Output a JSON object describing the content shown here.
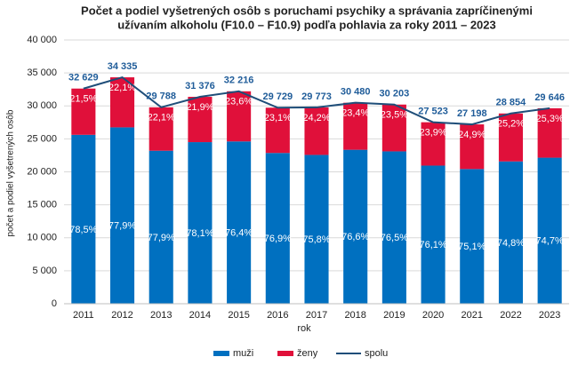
{
  "chart_data": {
    "type": "bar",
    "stacked": true,
    "title": [
      "Počet a podiel vyšetrených osôb s poruchami psychiky a správania zapríčinenými",
      "užívaním alkoholu (F10.0 – F10.9) podľa pohlavia za roky 2011 – 2023"
    ],
    "x_label": "rok",
    "y_label": "počet a podiel vyšetrených osôb",
    "categories": [
      "2011",
      "2012",
      "2013",
      "2014",
      "2015",
      "2016",
      "2017",
      "2018",
      "2019",
      "2020",
      "2021",
      "2022",
      "2023"
    ],
    "series": [
      {
        "name": "muži",
        "color": "#0070c0",
        "type": "bar",
        "values": [
          25614,
          26747,
          23205,
          24505,
          24613,
          22862,
          22568,
          23348,
          23105,
          20945,
          20426,
          21583,
          22146
        ],
        "value_labels": [
          "78,5%",
          "77,9%",
          "77,9%",
          "78,1%",
          "76,4%",
          "76,9%",
          "75,8%",
          "76,6%",
          "76,5%",
          "76,1%",
          "75,1%",
          "74,8%",
          "74,7%"
        ]
      },
      {
        "name": "ženy",
        "color": "#e0103a",
        "type": "bar",
        "values": [
          7015,
          7588,
          6583,
          6871,
          7603,
          6867,
          7205,
          7132,
          7098,
          6578,
          6772,
          7271,
          7500
        ],
        "value_labels": [
          "21,5%",
          "22,1%",
          "22,1%",
          "21,9%",
          "23,6%",
          "23,1%",
          "24,2%",
          "23,4%",
          "23,5%",
          "23,9%",
          "24,9%",
          "25,2%",
          "25,3%"
        ]
      },
      {
        "name": "spolu",
        "color": "#1f4e79",
        "type": "line",
        "values": [
          32629,
          34335,
          29788,
          31376,
          32216,
          29729,
          29773,
          30480,
          30203,
          27523,
          27198,
          28854,
          29646
        ],
        "value_labels": [
          "32 629",
          "34 335",
          "29 788",
          "31 376",
          "32 216",
          "29 729",
          "29 773",
          "30 480",
          "30 203",
          "27 523",
          "27 198",
          "28 854",
          "29 646"
        ]
      }
    ],
    "ylim": [
      0,
      40000
    ],
    "yticks": [
      0,
      {
        "value": 5000,
        "label": "5 000"
      },
      {
        "value": 10000,
        "label": "10 000"
      },
      {
        "value": 15000,
        "label": "15 000"
      },
      {
        "value": 20000,
        "label": "20 000"
      },
      {
        "value": 25000,
        "label": "25 000"
      },
      {
        "value": 30000,
        "label": "30 000"
      },
      {
        "value": 35000,
        "label": "35 000"
      },
      {
        "value": 40000,
        "label": "40 000"
      }
    ],
    "grid": true,
    "legend": "bottom"
  }
}
